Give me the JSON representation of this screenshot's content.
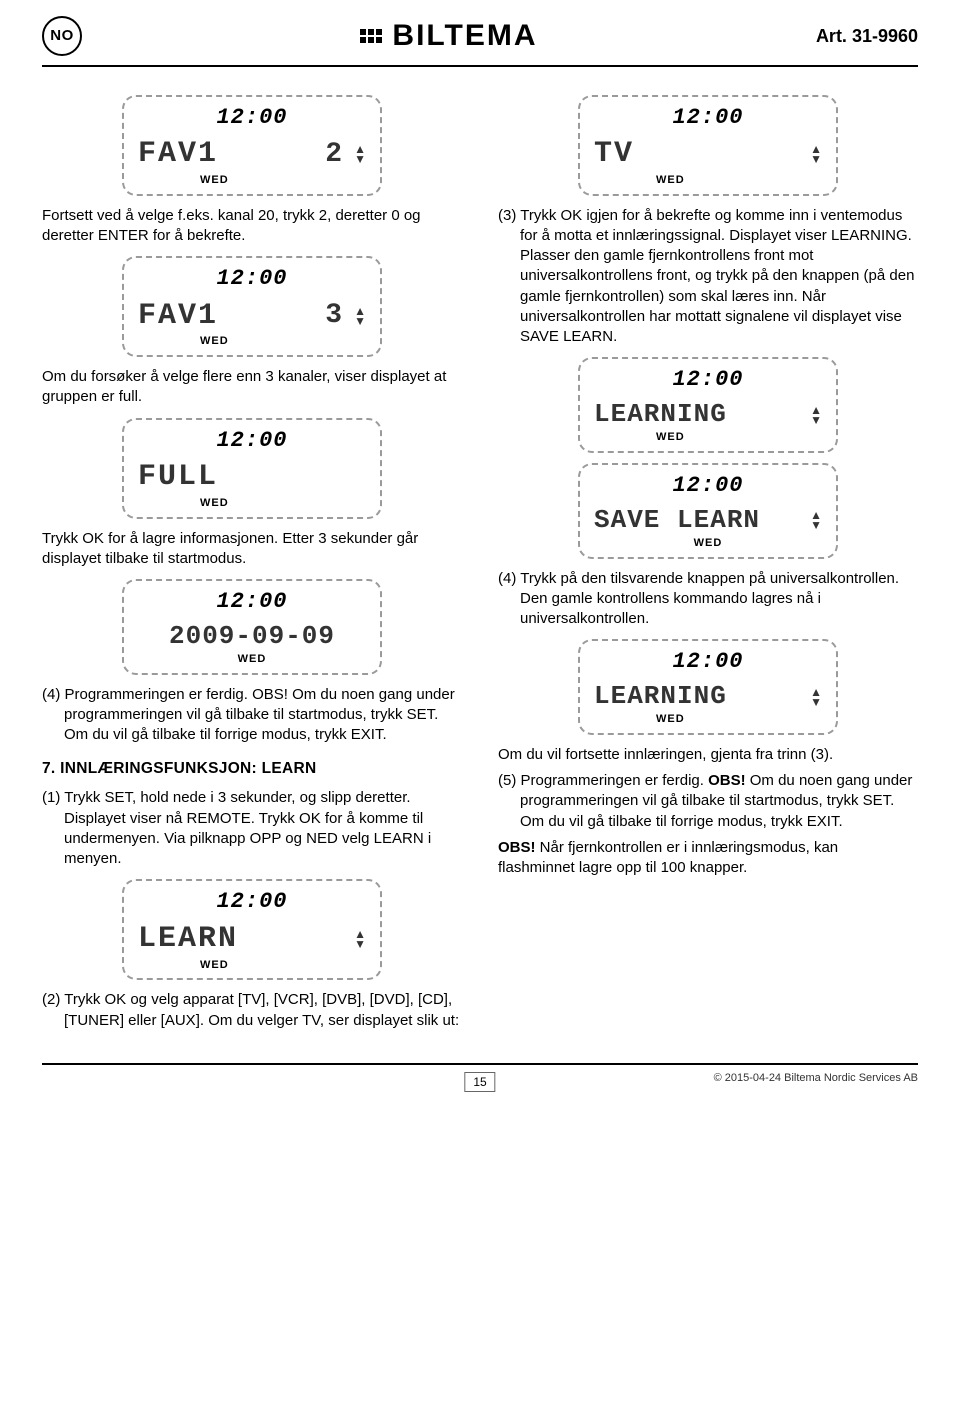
{
  "header": {
    "country_code": "NO",
    "brand": "BILTEMA",
    "article": "Art. 31-9960"
  },
  "lcd": {
    "time": "12:00",
    "day": "WED",
    "fav1": "FAV1",
    "num2": "2",
    "num3": "3",
    "full": "FULL",
    "date": "2009-09-09",
    "learn": "LEARN",
    "tv": "TV",
    "learning": "LEARNING",
    "save_learn": "SAVE LEARN"
  },
  "left": {
    "p1": "Fortsett ved å velge f.eks. kanal 20, trykk 2, deretter 0 og deretter ENTER for å bekrefte.",
    "p2": "Om du forsøker å velge flere enn 3 kanaler, viser displayet at gruppen er full.",
    "p3": "Trykk OK for å lagre informasjonen. Etter 3 sekunder går displayet tilbake til startmodus.",
    "p4": "(4) Programmeringen er ferdig. OBS! Om du noen gang under programmeringen vil gå tilbake til startmodus, trykk SET. Om du vil gå tilbake til forrige modus, trykk EXIT.",
    "h7": "7. INNLÆRINGSFUNKSJON: LEARN",
    "p5": "(1) Trykk SET, hold nede i 3 sekunder, og slipp deretter. Displayet viser nå REMOTE. Trykk OK for å komme til undermenyen. Via pilknapp OPP og NED velg LEARN i menyen.",
    "p6": "(2) Trykk OK og velg apparat [TV], [VCR], [DVB], [DVD], [CD], [TUNER] eller [AUX]. Om du velger TV, ser displayet slik ut:"
  },
  "right": {
    "p1": "(3) Trykk OK igjen for å bekrefte og komme inn i ventemodus for å motta et innlæringssignal. Displayet viser LEARNING. Plasser den gamle fjernkontrollens front mot universalkontrollens front, og trykk på den knappen (på den gamle fjernkontrollen) som skal læres inn. Når universalkontrollen har mottatt signalene vil displayet vise SAVE LEARN.",
    "p2": "(4) Trykk på den tilsvarende knappen på universalkontrollen. Den gamle kontrollens kommando lagres nå i universalkontrollen.",
    "p3": "Om du vil fortsette innlæringen, gjenta fra trinn (3).",
    "p4a": "(5) Programmeringen er ferdig. ",
    "p4b": "OBS!",
    "p4c": " Om du noen gang under programmeringen vil gå tilbake til startmodus, trykk SET. Om du vil gå tilbake til forrige modus, trykk EXIT.",
    "p5a": "OBS!",
    "p5b": " Når fjernkontrollen er i innlæringsmodus, kan flashminnet lagre opp til 100 knapper."
  },
  "footer": {
    "page": "15",
    "copyright": "© 2015-04-24 Biltema Nordic Services AB"
  }
}
